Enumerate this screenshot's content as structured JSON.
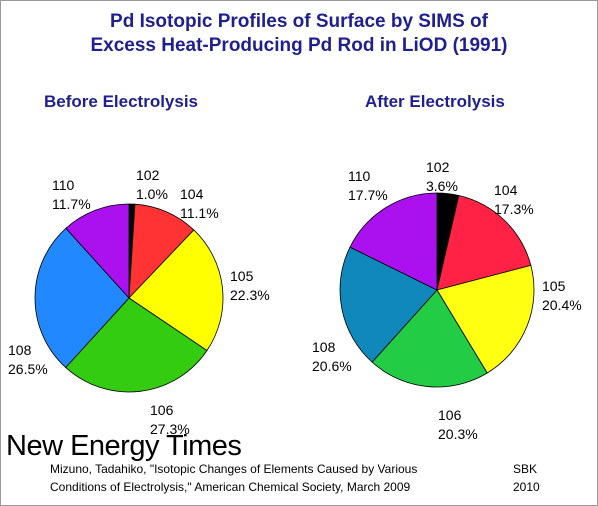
{
  "title_line1": "Pd Isotopic Profiles of Surface by SIMS of",
  "title_line2": "Excess Heat-Producing Pd Rod in LiOD (1991)",
  "chart_data": [
    {
      "type": "pie",
      "title": "Before Electrolysis",
      "slices": [
        {
          "label": "102",
          "value": 1.0,
          "text": "1.0%",
          "color": "#000000"
        },
        {
          "label": "104",
          "value": 11.1,
          "text": "11.1%",
          "color": "#ff3333"
        },
        {
          "label": "105",
          "value": 22.3,
          "text": "22.3%",
          "color": "#ffff00"
        },
        {
          "label": "106",
          "value": 27.3,
          "text": "27.3%",
          "color": "#33cc11"
        },
        {
          "label": "108",
          "value": 26.5,
          "text": "26.5%",
          "color": "#2288ff"
        },
        {
          "label": "110",
          "value": 11.7,
          "text": "11.7%",
          "color": "#aa11ee"
        }
      ]
    },
    {
      "type": "pie",
      "title": "After Electrolysis",
      "slices": [
        {
          "label": "102",
          "value": 3.6,
          "text": "3.6%",
          "color": "#000000"
        },
        {
          "label": "104",
          "value": 17.3,
          "text": "17.3%",
          "color": "#ff2244"
        },
        {
          "label": "105",
          "value": 20.4,
          "text": "20.4%",
          "color": "#ffff11"
        },
        {
          "label": "106",
          "value": 20.3,
          "text": "20.3%",
          "color": "#22cc44"
        },
        {
          "label": "108",
          "value": 20.6,
          "text": "20.6%",
          "color": "#1188bb"
        },
        {
          "label": "110",
          "value": 17.7,
          "text": "17.7%",
          "color": "#aa11ee"
        }
      ]
    }
  ],
  "brand": "New Energy Times",
  "citation_line1": "Mizuno, Tadahiko, \"Isotopic Changes of Elements Caused by Various",
  "citation_line2": "Conditions of Electrolysis,\" American Chemical Society, March 2009",
  "signature_line1": "SBK",
  "signature_line2": "2010"
}
